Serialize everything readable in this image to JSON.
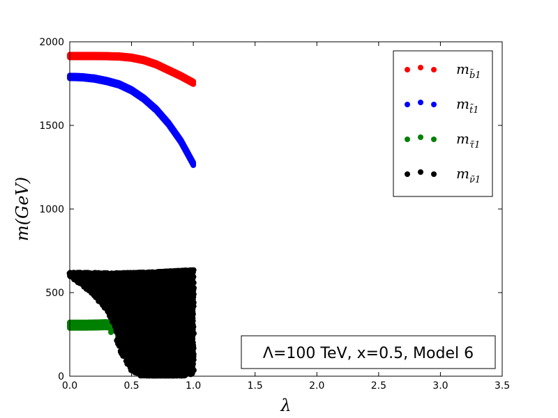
{
  "chart_data": {
    "type": "scatter",
    "xlabel": "λ",
    "ylabel": "m(GeV)",
    "xlim": [
      0,
      3.5
    ],
    "ylim": [
      0,
      2000
    ],
    "xticks": [
      "0.0",
      "0.5",
      "1.0",
      "1.5",
      "2.0",
      "2.5",
      "3.0",
      "3.5"
    ],
    "yticks": [
      "0",
      "500",
      "1000",
      "1500",
      "2000"
    ],
    "grid": false,
    "legend_position": "top-right",
    "annotation": "Λ=100 TeV, x=0.5, Model 6",
    "series": [
      {
        "name": "m_b̃1",
        "legend_label": "m",
        "legend_sub": "b̃1",
        "color": "#ff0000",
        "x": [
          0.0,
          0.1,
          0.2,
          0.3,
          0.4,
          0.5,
          0.6,
          0.7,
          0.8,
          0.9,
          1.0
        ],
        "y": [
          1915,
          1915,
          1915,
          1914,
          1912,
          1905,
          1890,
          1865,
          1830,
          1795,
          1755
        ]
      },
      {
        "name": "m_t̃1",
        "legend_label": "m",
        "legend_sub": "t̃1",
        "color": "#0000ff",
        "x": [
          0.0,
          0.1,
          0.2,
          0.3,
          0.4,
          0.5,
          0.6,
          0.7,
          0.8,
          0.9,
          1.0
        ],
        "y": [
          1790,
          1788,
          1780,
          1765,
          1745,
          1710,
          1660,
          1595,
          1510,
          1405,
          1270
        ]
      },
      {
        "name": "m_τ̃1",
        "legend_label": "m",
        "legend_sub": "τ̃1",
        "color": "#008000",
        "x": [
          0.0,
          0.1,
          0.2,
          0.3,
          0.35,
          0.4,
          0.45,
          0.5,
          0.6,
          0.7,
          0.8,
          0.9,
          1.0
        ],
        "y": [
          305,
          305,
          306,
          308,
          300,
          270,
          240,
          180,
          110,
          50,
          30,
          40,
          100
        ]
      },
      {
        "name": "m_ν̃1",
        "legend_label": "m",
        "legend_sub": "ν̃1",
        "color": "#000000",
        "x": [
          0.0,
          0.05,
          0.1,
          0.15,
          0.2,
          0.25,
          0.3,
          0.35,
          0.4,
          0.45,
          0.5,
          0.55,
          0.6,
          0.65,
          0.7,
          0.75,
          0.8,
          0.85,
          0.9,
          0.95,
          1.0
        ],
        "y": [
          620,
          620,
          620,
          619,
          619,
          618,
          617,
          617,
          617,
          618,
          619,
          620,
          621,
          622,
          624,
          626,
          628,
          630,
          632,
          634,
          635
        ],
        "lower": [
          600,
          575,
          545,
          515,
          480,
          440,
          400,
          330,
          230,
          150,
          90,
          60,
          40,
          25,
          20,
          20,
          30,
          30,
          40,
          50,
          80
        ]
      }
    ]
  }
}
